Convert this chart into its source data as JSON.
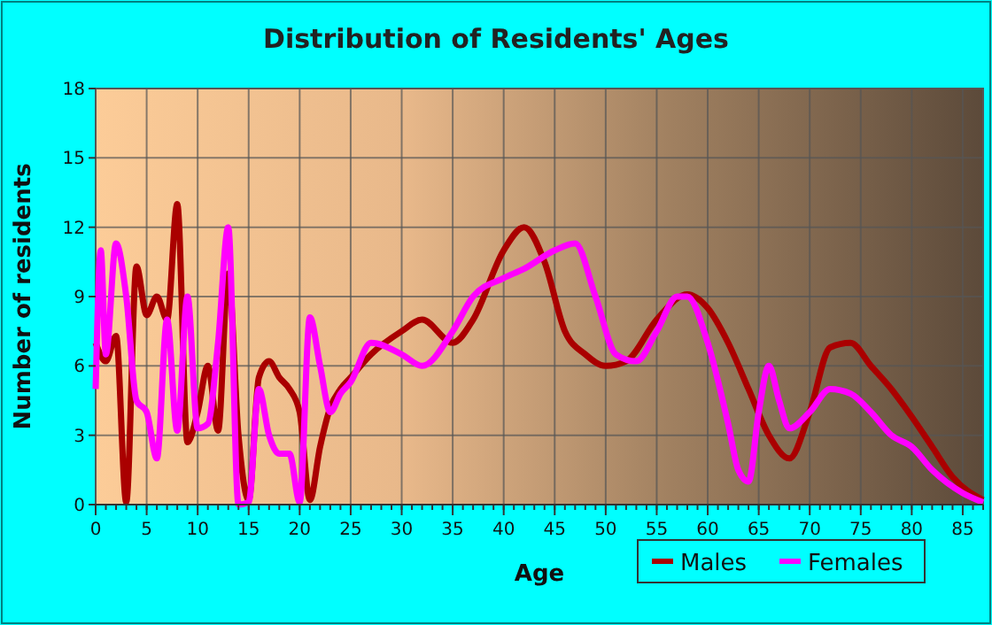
{
  "chart_data": {
    "type": "line",
    "title": "Distribution of Residents' Ages",
    "xlabel": "Age",
    "ylabel": "Number of residents",
    "xlim": [
      0,
      87
    ],
    "xticks": [
      0,
      5,
      10,
      15,
      20,
      25,
      30,
      35,
      40,
      45,
      50,
      55,
      60,
      65,
      70,
      75,
      80,
      85
    ],
    "ylim": [
      0,
      18
    ],
    "yticks": [
      0,
      3,
      6,
      9,
      12,
      15,
      18
    ],
    "grid": true,
    "legend": "bottom right",
    "marker": "none",
    "line_style": "solid",
    "series": [
      {
        "name": "Males",
        "color": "#aa0000",
        "x": [
          0,
          1,
          2,
          3,
          4,
          5,
          6,
          7,
          8,
          9,
          10,
          11,
          12,
          13,
          14,
          15,
          16,
          17,
          18,
          19,
          20,
          21,
          22,
          23,
          24,
          25,
          27,
          30,
          32,
          35,
          37,
          40,
          42,
          44,
          46,
          48,
          50,
          52,
          55,
          58,
          60,
          62,
          64,
          66,
          68,
          70,
          72,
          74,
          76,
          78,
          80,
          82,
          84,
          87
        ],
        "values": [
          7,
          6.2,
          7.3,
          0.1,
          10.3,
          8.2,
          9,
          8,
          13,
          2.7,
          4,
          6,
          3.2,
          10,
          3,
          0.2,
          5.5,
          6.2,
          5.5,
          5,
          4,
          0.2,
          2.5,
          4.2,
          5,
          5.5,
          6.5,
          7.5,
          8,
          7,
          8,
          11,
          12,
          10.5,
          7.5,
          6.5,
          6,
          6.2,
          8,
          9.1,
          8.5,
          7,
          5,
          3,
          2,
          4,
          6.8,
          7,
          6,
          5,
          3.8,
          2.5,
          1.2,
          0.2
        ]
      },
      {
        "name": "Females",
        "color": "#ff00ff",
        "x": [
          0,
          0.5,
          1,
          2,
          3,
          4,
          5,
          6,
          7,
          8,
          9,
          10,
          11,
          12,
          13,
          14,
          15,
          16,
          17,
          18,
          19,
          20,
          21,
          22,
          23,
          24,
          25,
          27,
          30,
          32,
          35,
          37,
          40,
          42,
          45,
          47,
          49,
          51,
          53,
          55,
          57,
          58,
          60,
          62,
          63,
          64,
          65,
          66,
          67,
          68,
          70,
          72,
          74,
          76,
          78,
          80,
          82,
          85,
          87
        ],
        "values": [
          5,
          11,
          6.5,
          11.3,
          9,
          4.5,
          4,
          2,
          8,
          3.2,
          9,
          3.3,
          3.5,
          7,
          12,
          0,
          0.1,
          5,
          3,
          2.2,
          2.2,
          0.1,
          8.1,
          6,
          4,
          4.8,
          5.3,
          7,
          6.5,
          6,
          7.5,
          9,
          9.8,
          10.2,
          11,
          11.3,
          9,
          6.5,
          6.2,
          7.5,
          9,
          9,
          7,
          3.5,
          1.5,
          1,
          4,
          6,
          4.5,
          3.3,
          4,
          5,
          4.8,
          4,
          3,
          2.5,
          1.5,
          0.5,
          0.1
        ]
      }
    ]
  }
}
